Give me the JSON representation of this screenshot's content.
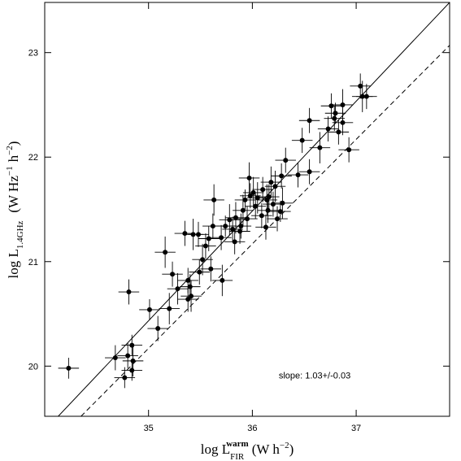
{
  "chart_data": {
    "type": "scatter",
    "xlabel": [
      "log L",
      "warm",
      "FIR",
      "(W h",
      "−2",
      ")"
    ],
    "ylabel": [
      "log L",
      "1.4GHz",
      "(W Hz",
      "−1",
      "h",
      "−2",
      ")"
    ],
    "annotation": {
      "text": "slope: 1.03+/-0.03",
      "x": 36.6,
      "y": 19.88
    },
    "xlim": [
      34.0,
      37.9
    ],
    "ylim": [
      19.52,
      23.48
    ],
    "xticks": [
      35,
      36,
      37
    ],
    "yticks": [
      20,
      21,
      22,
      23
    ],
    "color": "#000000",
    "lines": [
      {
        "style": "solid",
        "x": [
          34.13,
          37.9
        ],
        "y": [
          19.52,
          23.48
        ]
      },
      {
        "style": "dashed",
        "x": [
          34.35,
          37.9
        ],
        "y": [
          19.52,
          23.07
        ]
      }
    ],
    "xerr": 0.1,
    "series": [
      {
        "x": [
          34.23,
          34.68,
          34.77,
          34.8,
          34.84,
          34.84,
          34.81,
          34.85,
          35.01,
          35.09,
          35.16,
          35.2,
          35.23,
          35.28,
          35.35,
          35.38,
          35.4,
          35.38,
          35.41,
          35.43,
          35.48,
          35.49,
          35.52,
          35.55,
          35.58,
          35.6,
          35.63,
          35.62,
          35.7,
          35.71,
          35.74,
          35.78,
          35.81,
          35.83,
          35.84,
          35.88,
          35.89,
          35.91,
          35.93,
          35.95,
          35.97,
          35.98,
          36.01,
          36.03,
          36.05,
          36.09,
          36.1,
          36.13,
          36.14,
          36.15,
          36.16,
          36.18,
          36.2,
          36.22,
          36.24,
          36.27,
          36.28,
          36.29,
          36.32,
          36.44,
          36.48,
          36.55,
          36.55,
          36.65,
          36.73,
          36.76,
          36.79,
          36.8,
          36.83,
          36.87,
          36.87,
          36.93,
          37.04,
          37.06,
          37.1
        ],
        "values": [
          19.98,
          20.08,
          19.89,
          20.1,
          19.96,
          20.2,
          20.71,
          20.05,
          20.54,
          20.36,
          21.09,
          20.55,
          20.88,
          20.74,
          21.27,
          20.82,
          20.76,
          20.64,
          20.67,
          21.26,
          21.26,
          20.9,
          21.02,
          21.15,
          21.22,
          20.93,
          21.59,
          21.34,
          21.23,
          20.82,
          21.34,
          21.4,
          21.31,
          21.19,
          21.42,
          21.29,
          21.34,
          21.49,
          21.59,
          21.41,
          21.8,
          21.63,
          21.66,
          21.53,
          21.61,
          21.44,
          21.69,
          21.33,
          21.59,
          21.49,
          21.62,
          21.76,
          21.55,
          21.72,
          21.41,
          21.48,
          21.82,
          21.56,
          21.97,
          21.83,
          22.16,
          21.86,
          22.35,
          22.09,
          22.27,
          22.49,
          22.37,
          22.42,
          22.24,
          22.5,
          22.33,
          22.07,
          22.68,
          22.58,
          22.58
        ],
        "yerr": [
          0.1,
          0.12,
          0.1,
          0.12,
          0.1,
          0.1,
          0.12,
          0.15,
          0.1,
          0.12,
          0.15,
          0.15,
          0.12,
          0.15,
          0.12,
          0.12,
          0.12,
          0.12,
          0.15,
          0.15,
          0.12,
          0.12,
          0.15,
          0.12,
          0.12,
          0.12,
          0.15,
          0.12,
          0.12,
          0.15,
          0.1,
          0.15,
          0.12,
          0.12,
          0.15,
          0.12,
          0.12,
          0.15,
          0.1,
          0.12,
          0.15,
          0.12,
          0.15,
          0.12,
          0.15,
          0.12,
          0.12,
          0.12,
          0.15,
          0.12,
          0.12,
          0.15,
          0.12,
          0.15,
          0.12,
          0.1,
          0.12,
          0.15,
          0.12,
          0.12,
          0.12,
          0.12,
          0.12,
          0.15,
          0.12,
          0.12,
          0.12,
          0.1,
          0.12,
          0.15,
          0.12,
          0.12,
          0.12,
          0.15,
          0.12
        ]
      }
    ]
  }
}
